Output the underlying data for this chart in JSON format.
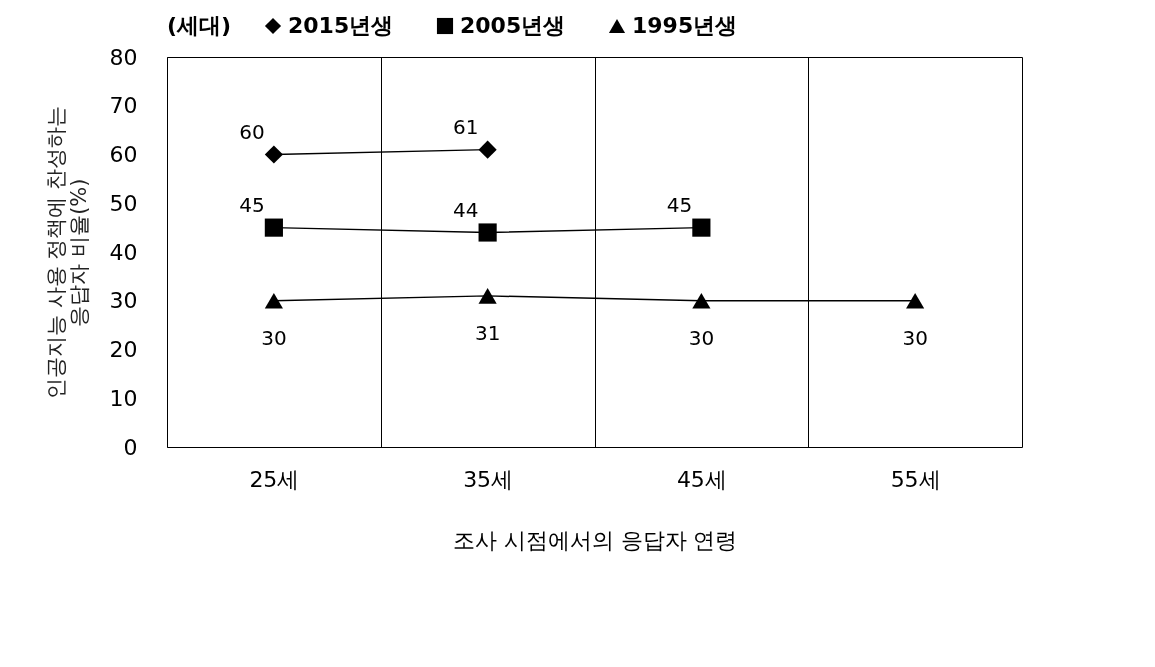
{
  "chart_data": {
    "type": "line",
    "xlabel": "조사 시점에서의 응답자 연령",
    "ylabel": "인공지능 사용 정책에 찬성하는\n응답자 비율(%)",
    "legend_title": "(세대)",
    "categories": [
      "25세",
      "35세",
      "45세",
      "55세"
    ],
    "series": [
      {
        "name": "2015년생",
        "color": "#000000",
        "marker": "diamond",
        "values": [
          60,
          61,
          null,
          null
        ]
      },
      {
        "name": "2005년생",
        "color": "#000000",
        "marker": "square",
        "values": [
          45,
          44,
          45,
          null
        ]
      },
      {
        "name": "1995년생",
        "color": "#000000",
        "marker": "triangle",
        "values": [
          30,
          31,
          30,
          30
        ]
      }
    ],
    "ylim": [
      0,
      80
    ],
    "yticks": [
      0,
      10,
      20,
      30,
      40,
      50,
      60,
      70,
      80
    ],
    "grid": "x",
    "legend": "top",
    "data_labels": true,
    "line_style": "solid"
  }
}
